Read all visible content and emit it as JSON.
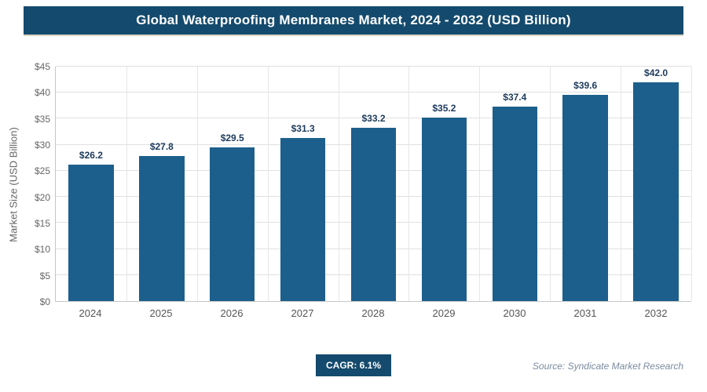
{
  "header": {
    "title": "Global Waterproofing Membranes Market, 2024 - 2032 (USD Billion)"
  },
  "chart_data": {
    "type": "bar",
    "title": "Global Waterproofing Membranes Market, 2024 - 2032 (USD Billion)",
    "categories": [
      "2024",
      "2025",
      "2026",
      "2027",
      "2028",
      "2029",
      "2030",
      "2031",
      "2032"
    ],
    "values": [
      26.2,
      27.8,
      29.5,
      31.3,
      33.2,
      35.2,
      37.4,
      39.6,
      42.0
    ],
    "value_labels": [
      "$26.2",
      "$27.8",
      "$29.5",
      "$31.3",
      "$33.2",
      "$35.2",
      "$37.4",
      "$39.6",
      "$42.0"
    ],
    "xlabel": "",
    "ylabel": "Market Size (USD Billion)",
    "ylim": [
      0,
      45
    ],
    "ytick_step": 5,
    "yticks": [
      "$0",
      "$5",
      "$10",
      "$15",
      "$20",
      "$25",
      "$30",
      "$35",
      "$40",
      "$45"
    ],
    "grid": "horizontal and vertical light gray gridlines",
    "legend": "none"
  },
  "footer": {
    "cagr_label": "CAGR: 6.1%",
    "source": "Source: Syndicate Market Research"
  },
  "colors": {
    "header_bg": "#144a6d",
    "bar": "#1d5f8c",
    "value_label": "#1c3a5c",
    "gridline": "#e0e0e0",
    "tick_text": "#666666",
    "source_text": "#7a8ba0"
  }
}
